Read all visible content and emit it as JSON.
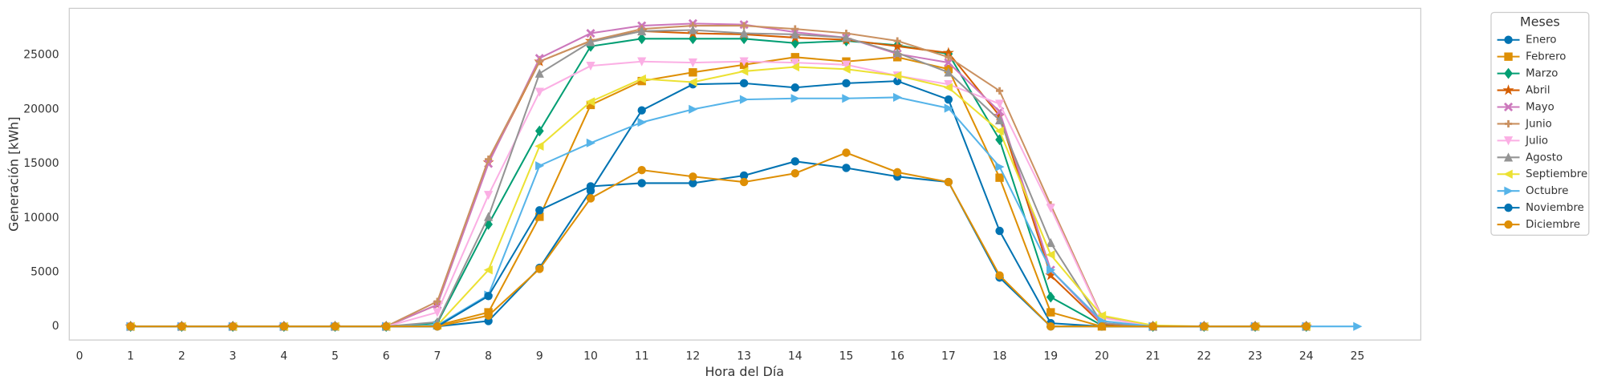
{
  "chart_data": {
    "type": "line",
    "x_label": "Hora del Día",
    "y_label": "Generación [kWh]",
    "legend_title": "Meses",
    "legend": "outside-upper-right",
    "grid": false,
    "x": [
      1,
      2,
      3,
      4,
      5,
      6,
      7,
      8,
      9,
      10,
      11,
      12,
      13,
      14,
      15,
      16,
      17,
      18,
      19,
      20,
      21,
      22,
      23,
      24,
      25
    ],
    "xlim": [
      -0.2,
      26.24
    ],
    "xticks": [
      0,
      1,
      2,
      3,
      4,
      5,
      6,
      7,
      8,
      9,
      10,
      11,
      12,
      13,
      14,
      15,
      16,
      17,
      18,
      19,
      20,
      21,
      22,
      23,
      24,
      25
    ],
    "ylim": [
      -1250,
      29300
    ],
    "yticks": [
      0,
      5000,
      10000,
      15000,
      20000,
      25000
    ],
    "series": [
      {
        "name": "Enero",
        "color": "#0173b2",
        "marker": "circle",
        "values": [
          0,
          0,
          0,
          0,
          0,
          0,
          0,
          500,
          5400,
          12500,
          19900,
          22300,
          22400,
          22000,
          22400,
          22600,
          20900,
          8800,
          300,
          0,
          0,
          0,
          0,
          0,
          null
        ]
      },
      {
        "name": "Febrero",
        "color": "#de8f05",
        "marker": "square",
        "values": [
          0,
          0,
          0,
          0,
          0,
          0,
          100,
          1300,
          10100,
          20400,
          22600,
          23400,
          24100,
          24800,
          24400,
          24800,
          23700,
          13700,
          1300,
          0,
          0,
          0,
          0,
          0,
          null
        ]
      },
      {
        "name": "Marzo",
        "color": "#029e73",
        "marker": "diamond",
        "values": [
          0,
          0,
          0,
          0,
          0,
          0,
          300,
          9400,
          18000,
          25800,
          26500,
          26500,
          26500,
          26100,
          26300,
          25900,
          25100,
          17200,
          2700,
          100,
          0,
          0,
          0,
          0,
          null
        ]
      },
      {
        "name": "Abril",
        "color": "#d55e00",
        "marker": "star",
        "values": [
          0,
          0,
          0,
          0,
          0,
          0,
          2000,
          15100,
          24400,
          26300,
          27200,
          27000,
          26900,
          26600,
          26400,
          25800,
          25200,
          19400,
          4700,
          200,
          0,
          0,
          0,
          0,
          null
        ]
      },
      {
        "name": "Mayo",
        "color": "#cc78bc",
        "marker": "x",
        "values": [
          0,
          0,
          0,
          0,
          0,
          0,
          2000,
          15000,
          24700,
          27000,
          27700,
          27900,
          27800,
          27100,
          26600,
          25100,
          24300,
          19800,
          5200,
          300,
          0,
          0,
          0,
          0,
          null
        ]
      },
      {
        "name": "Junio",
        "color": "#ca9161",
        "marker": "plus",
        "values": [
          0,
          0,
          0,
          0,
          0,
          0,
          2300,
          15400,
          24400,
          26300,
          27400,
          27700,
          27700,
          27400,
          27000,
          26300,
          24800,
          21700,
          11200,
          900,
          0,
          0,
          0,
          0,
          null
        ]
      },
      {
        "name": "Julio",
        "color": "#fbafe4",
        "marker": "tri-down",
        "values": [
          0,
          0,
          0,
          0,
          0,
          0,
          1300,
          12100,
          21600,
          24000,
          24400,
          24300,
          24400,
          24300,
          24100,
          23100,
          22300,
          20500,
          10900,
          800,
          0,
          0,
          0,
          0,
          null
        ]
      },
      {
        "name": "Agosto",
        "color": "#949494",
        "marker": "tri-up",
        "values": [
          0,
          0,
          0,
          0,
          0,
          0,
          400,
          10100,
          23300,
          26200,
          27200,
          27300,
          27000,
          26900,
          26600,
          25200,
          23400,
          19000,
          7700,
          300,
          0,
          0,
          0,
          0,
          null
        ]
      },
      {
        "name": "Septiembre",
        "color": "#ece133",
        "marker": "tri-left",
        "values": [
          0,
          0,
          0,
          0,
          0,
          0,
          100,
          5200,
          16600,
          20700,
          22800,
          22500,
          23500,
          23900,
          23700,
          23100,
          22000,
          18000,
          6600,
          1000,
          100,
          0,
          0,
          0,
          null
        ]
      },
      {
        "name": "Octubre",
        "color": "#56b4e9",
        "marker": "tri-right",
        "values": [
          0,
          0,
          0,
          0,
          0,
          0,
          100,
          2900,
          14800,
          16900,
          18800,
          20000,
          20900,
          21000,
          21000,
          21100,
          20100,
          14700,
          5200,
          500,
          0,
          0,
          0,
          0,
          0
        ]
      },
      {
        "name": "Noviembre",
        "color": "#0173b2",
        "marker": "circle",
        "values": [
          0,
          0,
          0,
          0,
          0,
          0,
          0,
          2800,
          10700,
          12900,
          13200,
          13200,
          13900,
          15200,
          14600,
          13800,
          13300,
          4500,
          0,
          0,
          0,
          0,
          0,
          0,
          null
        ]
      },
      {
        "name": "Diciembre",
        "color": "#de8f05",
        "marker": "circle",
        "values": [
          0,
          0,
          0,
          0,
          0,
          0,
          0,
          1000,
          5300,
          11800,
          14400,
          13800,
          13300,
          14100,
          16000,
          14200,
          13300,
          4700,
          0,
          0,
          0,
          0,
          0,
          0,
          null
        ]
      }
    ]
  }
}
